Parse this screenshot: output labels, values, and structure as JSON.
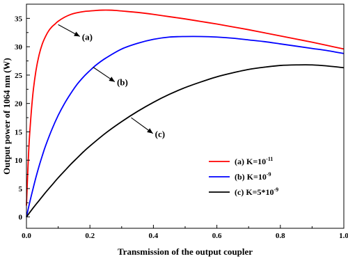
{
  "chart_data": {
    "type": "line",
    "title": "",
    "xlabel": "Transmission of the output coupler",
    "ylabel": "Output power of 1064 nm (W)",
    "xlim": [
      0.0,
      1.0
    ],
    "ylim": [
      -2,
      37.5
    ],
    "x_ticks": [
      0.0,
      0.2,
      0.4,
      0.6,
      0.8,
      1.0
    ],
    "x_tick_labels": [
      "0.0",
      "0.2",
      "0.4",
      "0.6",
      "0.8",
      "1.0"
    ],
    "y_ticks": [
      0,
      5,
      10,
      15,
      20,
      25,
      30,
      35
    ],
    "y_tick_labels": [
      "0",
      "5",
      "10",
      "15",
      "20",
      "25",
      "30",
      "35"
    ],
    "grid": false,
    "legend_position": "lower-right",
    "series": [
      {
        "name": "(a) K=10⁻¹¹",
        "legend_base": "(a) K=10",
        "legend_sup": "-11",
        "color": "#ff0000",
        "x": [
          0.0,
          0.005,
          0.01,
          0.02,
          0.03,
          0.04,
          0.05,
          0.06,
          0.07,
          0.08,
          0.09,
          0.1,
          0.12,
          0.14,
          0.16,
          0.18,
          0.2,
          0.22,
          0.24,
          0.26,
          0.28,
          0.3,
          0.35,
          0.4,
          0.45,
          0.5,
          0.55,
          0.6,
          0.65,
          0.7,
          0.75,
          0.8,
          0.85,
          0.9,
          0.95,
          1.0
        ],
        "y": [
          2.0,
          9.0,
          14.5,
          21.5,
          25.8,
          28.6,
          30.5,
          31.8,
          32.8,
          33.5,
          34.0,
          34.5,
          35.2,
          35.7,
          36.0,
          36.2,
          36.3,
          36.4,
          36.45,
          36.45,
          36.4,
          36.3,
          36.05,
          35.7,
          35.3,
          34.9,
          34.45,
          34.0,
          33.5,
          33.0,
          32.45,
          31.9,
          31.35,
          30.8,
          30.2,
          29.6
        ]
      },
      {
        "name": "(b) K=10⁻⁹",
        "legend_base": "(b) K=10",
        "legend_sup": "-9",
        "color": "#0000ff",
        "x": [
          0.0,
          0.01,
          0.02,
          0.03,
          0.04,
          0.05,
          0.06,
          0.08,
          0.1,
          0.12,
          0.14,
          0.16,
          0.18,
          0.2,
          0.22,
          0.25,
          0.3,
          0.35,
          0.4,
          0.45,
          0.5,
          0.55,
          0.6,
          0.65,
          0.7,
          0.75,
          0.8,
          0.85,
          0.9,
          0.95,
          1.0
        ],
        "y": [
          0.0,
          2.5,
          4.8,
          7.0,
          9.0,
          10.8,
          12.5,
          15.4,
          17.9,
          20.0,
          21.8,
          23.4,
          24.7,
          25.8,
          26.8,
          28.0,
          29.6,
          30.6,
          31.3,
          31.7,
          31.8,
          31.8,
          31.7,
          31.5,
          31.2,
          30.9,
          30.5,
          30.1,
          29.7,
          29.3,
          28.8
        ]
      },
      {
        "name": "(c) K=5*10⁻⁹",
        "legend_base": "(c) K=5*10",
        "legend_sup": "-9",
        "color": "#000000",
        "x": [
          0.0,
          0.02,
          0.04,
          0.06,
          0.08,
          0.1,
          0.12,
          0.14,
          0.16,
          0.18,
          0.2,
          0.25,
          0.3,
          0.35,
          0.4,
          0.45,
          0.5,
          0.55,
          0.6,
          0.65,
          0.7,
          0.75,
          0.8,
          0.85,
          0.9,
          0.95,
          1.0
        ],
        "y": [
          0.0,
          1.5,
          2.9,
          4.3,
          5.6,
          6.9,
          8.1,
          9.3,
          10.4,
          11.5,
          12.5,
          14.8,
          16.8,
          18.6,
          20.2,
          21.6,
          22.8,
          23.8,
          24.7,
          25.4,
          26.0,
          26.4,
          26.7,
          26.8,
          26.8,
          26.6,
          26.3
        ]
      }
    ],
    "annotations": [
      {
        "text": "(a)",
        "arrow_tip": [
          0.1,
          33.9
        ],
        "text_anchor": [
          0.175,
          31.2
        ]
      },
      {
        "text": "(b)",
        "arrow_tip": [
          0.21,
          26.4
        ],
        "text_anchor": [
          0.285,
          23.2
        ]
      },
      {
        "text": "(c)",
        "arrow_tip": [
          0.33,
          17.5
        ],
        "text_anchor": [
          0.405,
          14.1
        ]
      }
    ]
  }
}
